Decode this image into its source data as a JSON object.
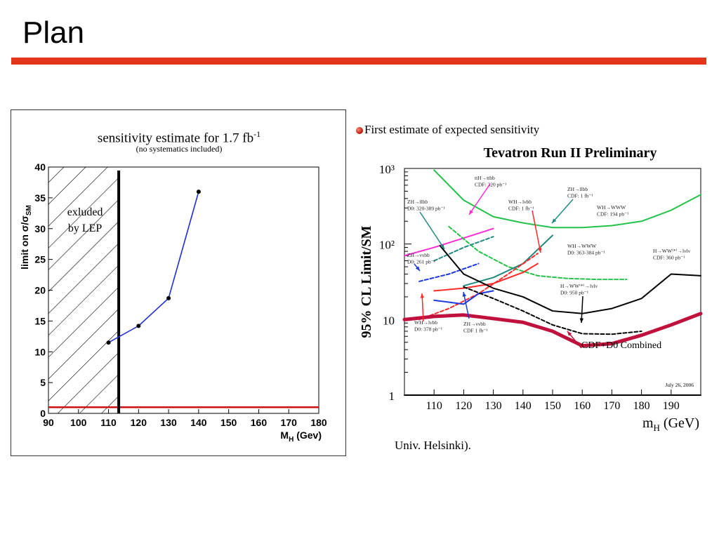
{
  "slide": {
    "title": "Plan"
  },
  "bullet": {
    "text": "First estimate of expected sensitivity"
  },
  "footnote": {
    "text": "Univ. Helsinki)."
  },
  "colors": {
    "accent": "#e3341c",
    "left_line": "#1f2fd6",
    "threshold": "#cc1111"
  },
  "chart_data": [
    {
      "type": "line",
      "title": "sensitivity estimate for 1.7 fb",
      "title_sup": "-1",
      "subtitle": "(no systematics included)",
      "ylabel": "limit on σ/σ",
      "ylabel_sub": "SM",
      "xlabel": "M",
      "xlabel_sub": "H",
      "xlabel_unit": "(Gev)",
      "xlim": [
        90,
        180
      ],
      "ylim": [
        0,
        40
      ],
      "xticks": [
        90,
        100,
        110,
        120,
        130,
        140,
        150,
        160,
        170,
        180
      ],
      "yticks": [
        0,
        5,
        10,
        15,
        20,
        25,
        30,
        35,
        40
      ],
      "series": [
        {
          "x": [
            110,
            120,
            130,
            140
          ],
          "y": [
            11.5,
            14.2,
            18.7,
            36
          ]
        }
      ],
      "reference_line_y": 1,
      "exclusion_boundary_x": 113.4,
      "excluded_label": [
        "exluded",
        "by LEP"
      ]
    },
    {
      "type": "line",
      "title": "Tevatron Run II Preliminary",
      "ylabel": "95% CL Limit/SM",
      "xlabel": "m",
      "xlabel_sub": "H",
      "xlabel_unit": "(GeV)",
      "xlim": [
        100,
        200
      ],
      "ylim": [
        1,
        1000
      ],
      "yscale": "log",
      "xticks": [
        110,
        120,
        130,
        140,
        150,
        160,
        170,
        180,
        190
      ],
      "yticks": [
        "1",
        "10",
        "10²",
        "10³"
      ],
      "date": "July 26, 2006",
      "annotations": [
        {
          "lines": [
            "ttH→ttbb",
            "CDF: 320 pb⁻¹"
          ]
        },
        {
          "lines": [
            "ZH→llbb",
            "D0: 320-389 pb⁻¹"
          ]
        },
        {
          "lines": [
            "ZH→llbb",
            "CDF: 1 fb⁻¹"
          ]
        },
        {
          "lines": [
            "WH→lνbb",
            "CDF: 1 fb⁻¹"
          ]
        },
        {
          "lines": [
            "WH→WWW",
            "CDF: 194 pb⁻¹"
          ]
        },
        {
          "lines": [
            "ZH→ννbb",
            "D0: 261 pb⁻¹"
          ]
        },
        {
          "lines": [
            "WH→WWW",
            "D0: 363-384 pb⁻¹"
          ]
        },
        {
          "lines": [
            "H→WW⁽*⁾→lνlν",
            "CDF: 360 pb⁻¹"
          ]
        },
        {
          "lines": [
            "H→WW⁽*⁾→lνlν",
            "D0: 950 pb⁻¹"
          ]
        },
        {
          "lines": [
            "WH→lνbb",
            "D0: 378 pb⁻¹"
          ]
        },
        {
          "lines": [
            "ZH→ννbb",
            "CDF 1 fb⁻¹"
          ]
        },
        {
          "lines": [
            "CDF+D0 Combined"
          ]
        }
      ],
      "series": [
        {
          "color": "#22c24a",
          "style": "solid",
          "x": [
            110,
            120,
            130,
            140,
            150,
            160,
            170,
            180,
            190,
            200
          ],
          "y": [
            950,
            380,
            230,
            190,
            165,
            165,
            175,
            200,
            280,
            450
          ]
        },
        {
          "color": "#ff2bd6",
          "style": "solid",
          "x": [
            100,
            110,
            120,
            130
          ],
          "y": [
            70,
            90,
            120,
            160
          ]
        },
        {
          "color": "#22c24a",
          "style": "dashed",
          "x": [
            115,
            125,
            135,
            145,
            155,
            165,
            175
          ],
          "y": [
            170,
            80,
            50,
            38,
            35,
            34,
            34
          ]
        },
        {
          "color": "#1f8a7f",
          "style": "dashed",
          "x": [
            110,
            120,
            130
          ],
          "y": [
            60,
            90,
            125
          ]
        },
        {
          "color": "#1f8a7f",
          "style": "solid",
          "x": [
            120,
            130,
            140,
            150
          ],
          "y": [
            28,
            36,
            55,
            130
          ]
        },
        {
          "color": "#1b3ae0",
          "style": "dashed",
          "x": [
            105,
            115,
            125
          ],
          "y": [
            32,
            40,
            55
          ]
        },
        {
          "color": "#ff2a2a",
          "style": "dashed",
          "x": [
            105,
            115,
            125,
            135,
            145
          ],
          "y": [
            10,
            14,
            22,
            40,
            75
          ]
        },
        {
          "color": "#ff2a2a",
          "style": "solid",
          "x": [
            110,
            120,
            130,
            140,
            145
          ],
          "y": [
            24,
            26,
            30,
            42,
            55
          ]
        },
        {
          "color": "#1b3ae0",
          "style": "solid",
          "x": [
            110,
            120,
            125,
            130
          ],
          "y": [
            18,
            16,
            22,
            24
          ]
        },
        {
          "color": "#000000",
          "style": "solid",
          "x": [
            112,
            120,
            130,
            140,
            150,
            160,
            170,
            180,
            190,
            200
          ],
          "y": [
            95,
            40,
            26,
            20,
            13,
            12,
            14,
            19,
            40,
            38
          ]
        },
        {
          "color": "#000000",
          "style": "dashed",
          "x": [
            120,
            130,
            140,
            150,
            160,
            170,
            180
          ],
          "y": [
            27,
            19,
            13,
            8.5,
            6.5,
            6.4,
            7
          ]
        },
        {
          "color": "#c0103c",
          "style": "solid",
          "x": [
            100,
            110,
            120,
            130,
            140,
            150,
            160,
            170,
            180,
            190,
            200
          ],
          "y": [
            10,
            11,
            11.5,
            10.3,
            9.2,
            7,
            4.5,
            4.8,
            6.2,
            8.5,
            12
          ]
        },
        {
          "color": "#000000",
          "style": "solid",
          "x": [
            100,
            200
          ],
          "y": [
            1,
            1
          ]
        }
      ]
    }
  ]
}
